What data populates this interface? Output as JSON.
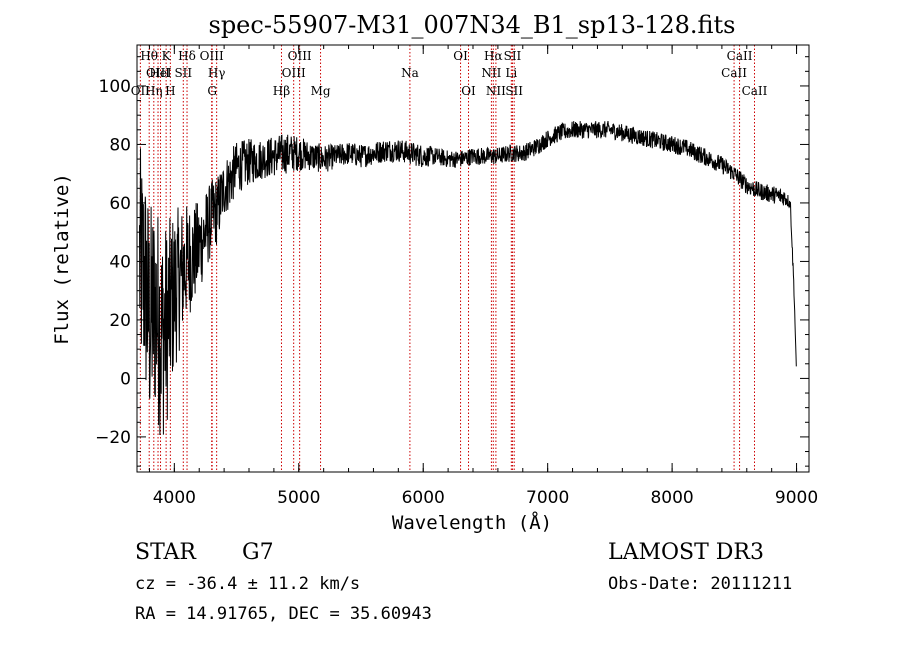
{
  "chart_data": {
    "type": "line",
    "title": "spec-55907-M31_007N34_B1_sp13-128.fits",
    "xlabel": "Wavelength (Å)",
    "ylabel": "Flux (relative)",
    "xlim": [
      3700,
      9100
    ],
    "ylim": [
      -32,
      114
    ],
    "x_ticks": [
      4000,
      5000,
      6000,
      7000,
      8000,
      9000
    ],
    "y_ticks": [
      -20,
      0,
      20,
      40,
      60,
      80,
      100
    ],
    "colors": {
      "spectrum": "#000000",
      "lines": "#cc0000"
    },
    "spectrum_envelope": {
      "x": [
        3720,
        3760,
        3800,
        3850,
        3900,
        3950,
        4000,
        4050,
        4100,
        4150,
        4200,
        4250,
        4300,
        4350,
        4400,
        4450,
        4500,
        4600,
        4700,
        4800,
        4900,
        5000,
        5100,
        5200,
        5300,
        5400,
        5500,
        5600,
        5700,
        5800,
        5900,
        6000,
        6100,
        6200,
        6300,
        6400,
        6500,
        6600,
        6700,
        6800,
        6900,
        7000,
        7100,
        7200,
        7300,
        7400,
        7500,
        7600,
        7700,
        7800,
        7900,
        8000,
        8100,
        8200,
        8300,
        8400,
        8500,
        8600,
        8700,
        8800,
        8900,
        8950,
        8980,
        9000
      ],
      "y": [
        40,
        35,
        20,
        25,
        15,
        20,
        30,
        35,
        40,
        42,
        45,
        50,
        55,
        58,
        65,
        68,
        72,
        74,
        75,
        76,
        77,
        77,
        76,
        75,
        76,
        77,
        76,
        77,
        78,
        78,
        77,
        76,
        76,
        75,
        75,
        76,
        76,
        76,
        77,
        77,
        79,
        82,
        84,
        85,
        85,
        85,
        85,
        84,
        83,
        82,
        81,
        80,
        79,
        77,
        75,
        73,
        70,
        66,
        64,
        63,
        62,
        60,
        30,
        1
      ],
      "noise_amplitude": [
        40,
        40,
        40,
        38,
        38,
        34,
        28,
        24,
        20,
        18,
        16,
        14,
        13,
        12,
        10,
        10,
        9,
        8,
        7,
        7,
        7,
        6,
        5,
        5,
        4,
        4,
        4,
        4,
        4,
        4,
        4,
        4,
        3,
        3,
        3,
        3,
        3,
        3,
        3,
        3,
        3,
        3,
        3,
        3,
        3,
        3,
        3,
        3,
        3,
        3,
        3,
        3,
        3,
        3,
        3,
        3,
        3,
        3,
        3,
        3,
        3,
        2,
        2,
        0
      ]
    },
    "lines": [
      {
        "name": "OII",
        "wave": 3727,
        "row": 2
      },
      {
        "name": "Hθ",
        "wave": 3798,
        "row": 0
      },
      {
        "name": "OIII",
        "wave": 3869,
        "row": 1
      },
      {
        "name": "Hη",
        "wave": 3835,
        "row": 2
      },
      {
        "name": "HeI",
        "wave": 3889,
        "row": 1
      },
      {
        "name": "K",
        "wave": 3934,
        "row": 0
      },
      {
        "name": "H",
        "wave": 3968,
        "row": 2
      },
      {
        "name": "SII",
        "wave": 4072,
        "row": 1
      },
      {
        "name": "Hδ",
        "wave": 4102,
        "row": 0
      },
      {
        "name": "OIII",
        "wave": 4300,
        "row": 0
      },
      {
        "name": "Hγ",
        "wave": 4340,
        "row": 1
      },
      {
        "name": "G",
        "wave": 4304,
        "row": 2
      },
      {
        "name": "Hβ",
        "wave": 4861,
        "row": 2
      },
      {
        "name": "OIII",
        "wave": 4959,
        "row": 1
      },
      {
        "name": "OIII",
        "wave": 5007,
        "row": 0
      },
      {
        "name": "Mg",
        "wave": 5175,
        "row": 2
      },
      {
        "name": "Na",
        "wave": 5893,
        "row": 1
      },
      {
        "name": "OI",
        "wave": 6300,
        "row": 0
      },
      {
        "name": "OI",
        "wave": 6364,
        "row": 2
      },
      {
        "name": "NII",
        "wave": 6548,
        "row": 1
      },
      {
        "name": "Hα",
        "wave": 6563,
        "row": 0
      },
      {
        "name": "NII",
        "wave": 6584,
        "row": 2
      },
      {
        "name": "Li",
        "wave": 6708,
        "row": 1
      },
      {
        "name": "SII",
        "wave": 6717,
        "row": 0
      },
      {
        "name": "SII",
        "wave": 6731,
        "row": 2
      },
      {
        "name": "CaII",
        "wave": 8498,
        "row": 1
      },
      {
        "name": "CaII",
        "wave": 8542,
        "row": 0
      },
      {
        "name": "CaII",
        "wave": 8662,
        "row": 2
      }
    ]
  },
  "info": {
    "class_label": "STAR",
    "subclass": "G7",
    "survey": "LAMOST DR3",
    "cz": "cz = -36.4 ± 11.2 km/s",
    "obs_date": "Obs-Date: 20111211",
    "coords": "RA =  14.91765, DEC =  35.60943"
  }
}
